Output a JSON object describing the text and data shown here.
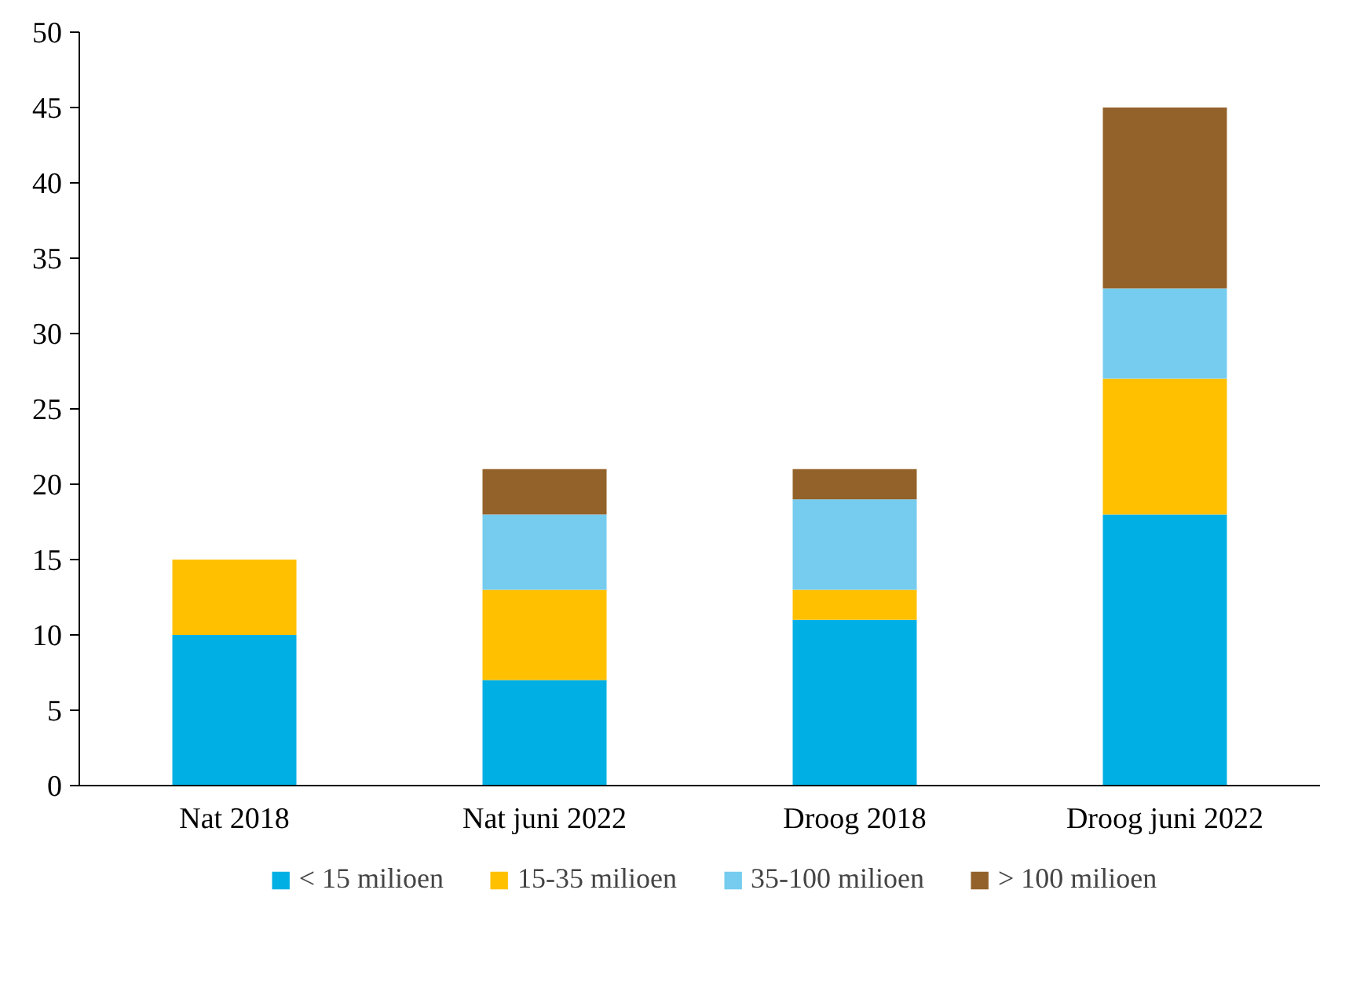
{
  "chart_data": {
    "type": "bar",
    "stacked": true,
    "categories": [
      "Nat 2018",
      "Nat juni 2022",
      "Droog 2018",
      "Droog juni 2022"
    ],
    "series": [
      {
        "name": "< 15 milioen",
        "color": "#00b0e4",
        "values": [
          10,
          7,
          11,
          18
        ]
      },
      {
        "name": "15-35 milioen",
        "color": "#ffc000",
        "values": [
          5,
          6,
          2,
          9
        ]
      },
      {
        "name": "35-100 milioen",
        "color": "#75ccef",
        "values": [
          0,
          5,
          6,
          6
        ]
      },
      {
        "name": "> 100 milioen",
        "color": "#93622a",
        "values": [
          0,
          3,
          2,
          12
        ]
      }
    ],
    "ylim": [
      0,
      50
    ],
    "yticks": [
      0,
      5,
      10,
      15,
      20,
      25,
      30,
      35,
      40,
      45,
      50
    ],
    "grid": false,
    "legend": "bottom"
  }
}
